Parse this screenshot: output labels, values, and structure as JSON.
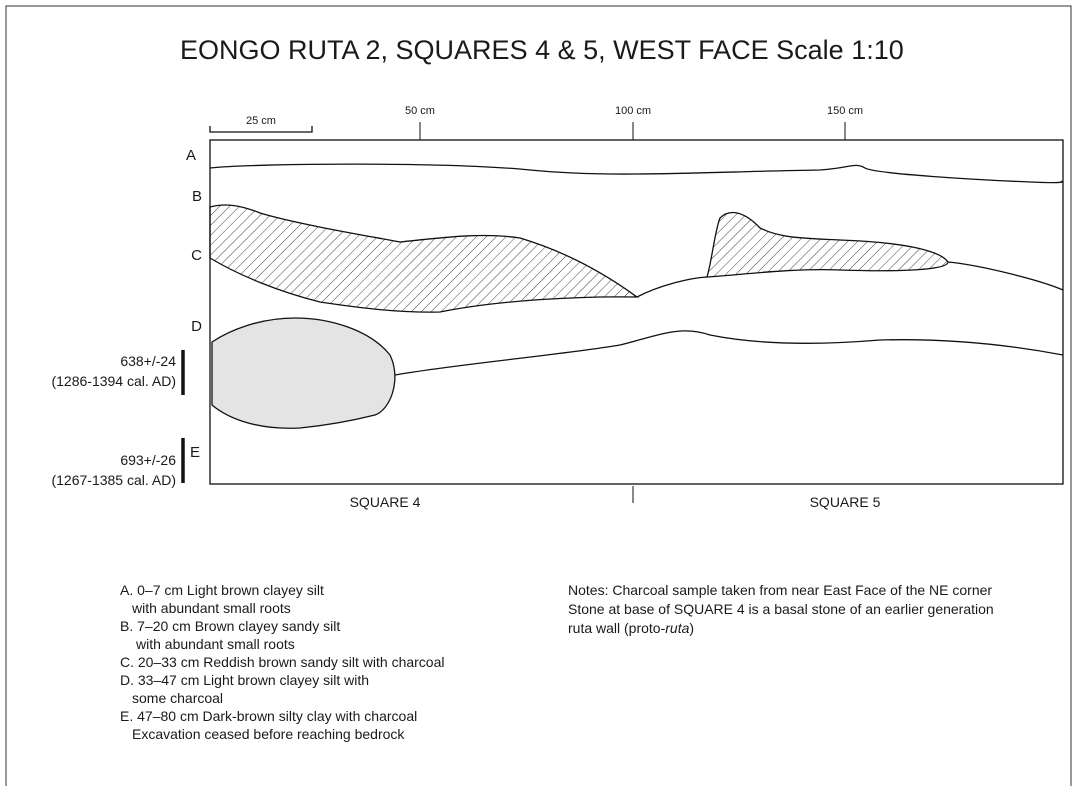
{
  "title": "EONGO RUTA 2, SQUARES 4 & 5, WEST FACE Scale 1:10",
  "scale": {
    "bar_label": "25 cm",
    "ticks": [
      "50 cm",
      "100 cm",
      "150 cm"
    ]
  },
  "layers": [
    "A",
    "B",
    "C",
    "D",
    "E"
  ],
  "dates": [
    {
      "age": "638+/-24",
      "calibrated": "(1286-1394 cal. AD)"
    },
    {
      "age": "693+/-26",
      "calibrated": "(1267-1385 cal. AD)"
    }
  ],
  "squares": [
    "SQUARE 4",
    "SQUARE 5"
  ],
  "legend": [
    {
      "lines": [
        "A. 0–7 cm Light brown clayey silt",
        "with abundant small roots"
      ]
    },
    {
      "lines": [
        "B. 7–20 cm Brown clayey sandy silt",
        "with abundant small roots"
      ]
    },
    {
      "lines": [
        "C. 20–33 cm Reddish brown sandy silt with charcoal"
      ]
    },
    {
      "lines": [
        "D. 33–47 cm Light brown clayey silt with",
        "some charcoal"
      ]
    },
    {
      "lines": [
        "E. 47–80 cm Dark-brown silty clay with charcoal",
        "Excavation ceased before reaching bedrock"
      ]
    }
  ],
  "notes": {
    "lines": [
      "Notes: Charcoal sample taken from near East Face of the NE corner",
      "Stone at base of SQUARE 4 is a basal stone of an earlier generation"
    ],
    "last_line": {
      "before": "ruta wall (proto-",
      "italic": "ruta",
      "after": ")"
    }
  }
}
